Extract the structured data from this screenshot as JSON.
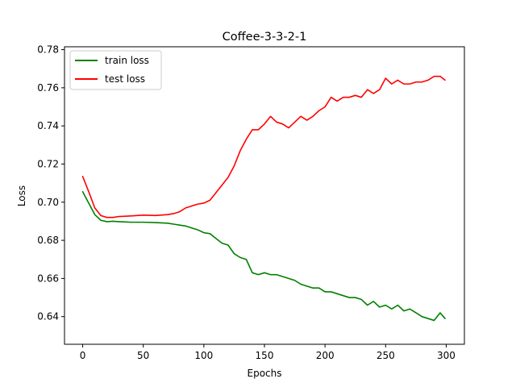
{
  "chart_data": {
    "type": "line",
    "title": "Coffee-3-3-2-1",
    "xlabel": "Epochs",
    "ylabel": "Loss",
    "xlim": [
      -15,
      315
    ],
    "ylim": [
      0.6255,
      0.7815
    ],
    "xticks": [
      0,
      50,
      100,
      150,
      200,
      250,
      300
    ],
    "yticks": [
      0.64,
      0.66,
      0.68,
      0.7,
      0.72,
      0.74,
      0.76,
      0.78
    ],
    "grid": false,
    "legend_position": "upper-left",
    "series": [
      {
        "name": "train loss",
        "color": "#008000",
        "x": [
          0,
          5,
          10,
          15,
          20,
          25,
          30,
          40,
          50,
          60,
          70,
          75,
          80,
          85,
          90,
          95,
          100,
          105,
          110,
          115,
          120,
          125,
          130,
          135,
          140,
          145,
          150,
          155,
          160,
          165,
          170,
          175,
          180,
          185,
          190,
          195,
          200,
          205,
          210,
          215,
          220,
          225,
          230,
          235,
          240,
          245,
          250,
          255,
          260,
          265,
          270,
          275,
          280,
          285,
          290,
          295,
          299
        ],
        "y": [
          0.7055,
          0.6995,
          0.6935,
          0.6905,
          0.6898,
          0.69,
          0.6898,
          0.6895,
          0.6895,
          0.6893,
          0.689,
          0.6885,
          0.688,
          0.6875,
          0.6865,
          0.6855,
          0.684,
          0.6835,
          0.681,
          0.6785,
          0.6775,
          0.673,
          0.671,
          0.67,
          0.663,
          0.662,
          0.663,
          0.662,
          0.662,
          0.661,
          0.66,
          0.659,
          0.657,
          0.656,
          0.655,
          0.655,
          0.653,
          0.653,
          0.652,
          0.651,
          0.65,
          0.65,
          0.649,
          0.646,
          0.648,
          0.645,
          0.646,
          0.644,
          0.646,
          0.643,
          0.644,
          0.642,
          0.64,
          0.639,
          0.638,
          0.642,
          0.639
        ]
      },
      {
        "name": "test loss",
        "color": "#ff0000",
        "x": [
          0,
          5,
          10,
          15,
          20,
          25,
          30,
          40,
          50,
          60,
          70,
          75,
          80,
          85,
          90,
          95,
          100,
          105,
          110,
          115,
          120,
          125,
          130,
          135,
          140,
          145,
          150,
          155,
          160,
          165,
          170,
          175,
          180,
          185,
          190,
          195,
          200,
          205,
          210,
          215,
          220,
          225,
          230,
          235,
          240,
          245,
          250,
          255,
          260,
          265,
          270,
          275,
          280,
          285,
          290,
          295,
          299
        ],
        "y": [
          0.7135,
          0.7055,
          0.697,
          0.693,
          0.692,
          0.692,
          0.6925,
          0.6928,
          0.6932,
          0.693,
          0.6935,
          0.694,
          0.695,
          0.697,
          0.698,
          0.699,
          0.6995,
          0.701,
          0.705,
          0.709,
          0.713,
          0.719,
          0.727,
          0.733,
          0.738,
          0.738,
          0.741,
          0.745,
          0.742,
          0.741,
          0.739,
          0.742,
          0.745,
          0.743,
          0.745,
          0.748,
          0.75,
          0.755,
          0.753,
          0.755,
          0.755,
          0.756,
          0.755,
          0.759,
          0.757,
          0.759,
          0.765,
          0.762,
          0.764,
          0.762,
          0.762,
          0.763,
          0.763,
          0.764,
          0.766,
          0.766,
          0.764
        ]
      }
    ]
  }
}
